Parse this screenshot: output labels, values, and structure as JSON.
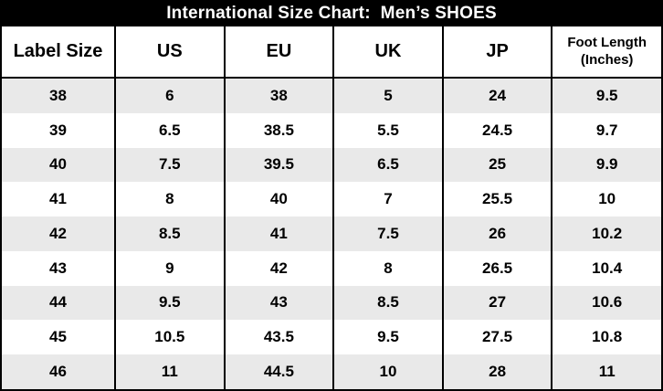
{
  "title": "International Size Chart:  Men’s SHOES",
  "colors": {
    "title_bg": "#000000",
    "title_fg": "#ffffff",
    "row_alt_bg": "#e9e9e9",
    "row_plain_bg": "#ffffff",
    "border": "#000000",
    "text": "#000000"
  },
  "chart_data": {
    "type": "table",
    "title": "International Size Chart:  Men’s SHOES",
    "columns": [
      "Label Size",
      "US",
      "EU",
      "UK",
      "JP",
      "Foot Length (Inches)"
    ],
    "rows": [
      [
        "38",
        "6",
        "38",
        "5",
        "24",
        "9.5"
      ],
      [
        "39",
        "6.5",
        "38.5",
        "5.5",
        "24.5",
        "9.7"
      ],
      [
        "40",
        "7.5",
        "39.5",
        "6.5",
        "25",
        "9.9"
      ],
      [
        "41",
        "8",
        "40",
        "7",
        "25.5",
        "10"
      ],
      [
        "42",
        "8.5",
        "41",
        "7.5",
        "26",
        "10.2"
      ],
      [
        "43",
        "9",
        "42",
        "8",
        "26.5",
        "10.4"
      ],
      [
        "44",
        "9.5",
        "43",
        "8.5",
        "27",
        "10.6"
      ],
      [
        "45",
        "10.5",
        "43.5",
        "9.5",
        "27.5",
        "10.8"
      ],
      [
        "46",
        "11",
        "44.5",
        "10",
        "28",
        "11"
      ]
    ],
    "layout": {
      "striped_rows": true,
      "stripe_pattern": "odd-rows-gray-starting-first",
      "column_borders": true,
      "row_borders": false
    }
  }
}
